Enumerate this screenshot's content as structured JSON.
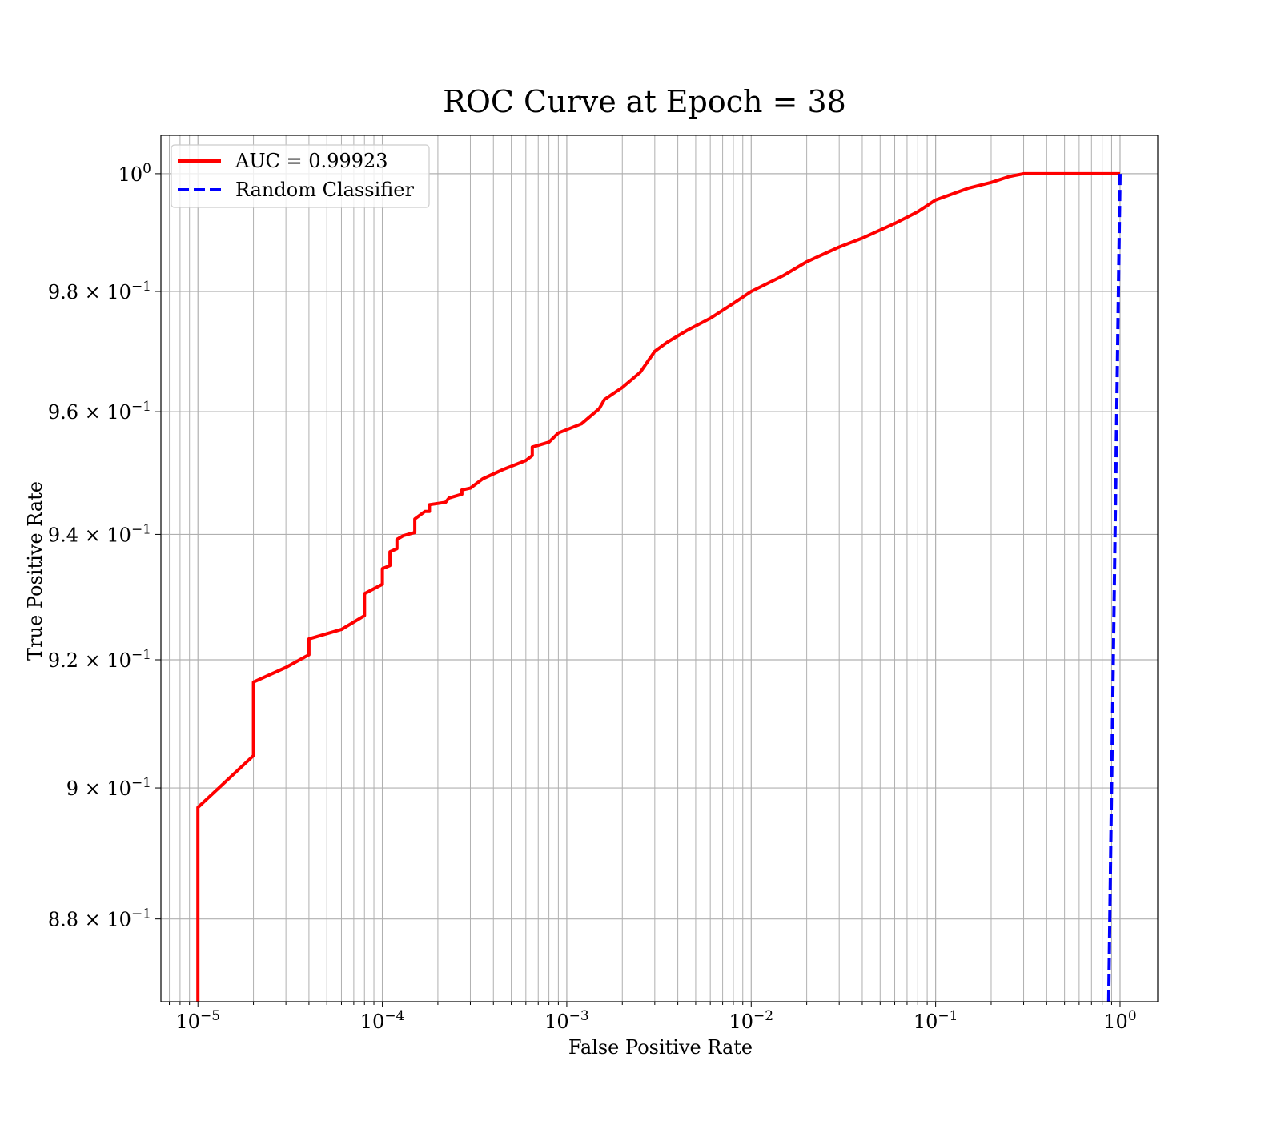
{
  "chart_data": {
    "type": "line",
    "title": "ROC Curve at Epoch = 38",
    "xlabel": "False Positive Rate",
    "ylabel": "True Positive Rate",
    "xscale": "log",
    "yscale": "log",
    "xlim": [
      6.3e-06,
      1.6
    ],
    "ylim": [
      0.8676,
      1.0066
    ],
    "grid": true,
    "legend_position": "top-left",
    "x_ticks": [
      {
        "value": 1e-05,
        "base": "10",
        "exp": "−5"
      },
      {
        "value": 0.0001,
        "base": "10",
        "exp": "−4"
      },
      {
        "value": 0.001,
        "base": "10",
        "exp": "−3"
      },
      {
        "value": 0.01,
        "base": "10",
        "exp": "−2"
      },
      {
        "value": 0.1,
        "base": "10",
        "exp": "−1"
      },
      {
        "value": 1,
        "base": "10",
        "exp": "0"
      }
    ],
    "y_ticks": [
      {
        "value": 1.0,
        "base": "10",
        "exp": "0"
      },
      {
        "value": 0.98,
        "base": "9.8 × 10",
        "exp": "−1"
      },
      {
        "value": 0.96,
        "base": "9.6 × 10",
        "exp": "−1"
      },
      {
        "value": 0.94,
        "base": "9.4 × 10",
        "exp": "−1"
      },
      {
        "value": 0.92,
        "base": "9.2 × 10",
        "exp": "−1"
      },
      {
        "value": 0.9,
        "base": "9 × 10",
        "exp": "−1"
      },
      {
        "value": 0.88,
        "base": "8.8 × 10",
        "exp": "−1"
      }
    ],
    "series": [
      {
        "name": "AUC = 0.99923",
        "color": "#ff0000",
        "style": "solid",
        "points": [
          [
            1e-05,
            0.8676
          ],
          [
            1e-05,
            0.8704
          ],
          [
            1e-05,
            0.897
          ],
          [
            2e-05,
            0.905
          ],
          [
            2e-05,
            0.9165
          ],
          [
            3e-05,
            0.9188
          ],
          [
            4e-05,
            0.9208
          ],
          [
            4e-05,
            0.9233
          ],
          [
            6e-05,
            0.9248
          ],
          [
            8e-05,
            0.927
          ],
          [
            8e-05,
            0.9305
          ],
          [
            0.0001,
            0.932
          ],
          [
            0.0001,
            0.9345
          ],
          [
            0.00011,
            0.935
          ],
          [
            0.00011,
            0.9372
          ],
          [
            0.00012,
            0.9377
          ],
          [
            0.00012,
            0.9392
          ],
          [
            0.00013,
            0.9398
          ],
          [
            0.00015,
            0.9403
          ],
          [
            0.00015,
            0.9425
          ],
          [
            0.00017,
            0.9437
          ],
          [
            0.00018,
            0.9437
          ],
          [
            0.00018,
            0.9448
          ],
          [
            0.00022,
            0.9452
          ],
          [
            0.00023,
            0.9459
          ],
          [
            0.00027,
            0.9465
          ],
          [
            0.00027,
            0.9472
          ],
          [
            0.0003,
            0.9475
          ],
          [
            0.00035,
            0.949
          ],
          [
            0.00045,
            0.9505
          ],
          [
            0.0006,
            0.952
          ],
          [
            0.00065,
            0.9528
          ],
          [
            0.00065,
            0.9542
          ],
          [
            0.0008,
            0.955
          ],
          [
            0.0009,
            0.9565
          ],
          [
            0.0012,
            0.958
          ],
          [
            0.0015,
            0.9605
          ],
          [
            0.0016,
            0.962
          ],
          [
            0.002,
            0.964
          ],
          [
            0.0025,
            0.9665
          ],
          [
            0.003,
            0.97
          ],
          [
            0.0035,
            0.9715
          ],
          [
            0.0045,
            0.9735
          ],
          [
            0.006,
            0.9755
          ],
          [
            0.008,
            0.978
          ],
          [
            0.01,
            0.98
          ],
          [
            0.015,
            0.9827
          ],
          [
            0.02,
            0.985
          ],
          [
            0.03,
            0.9875
          ],
          [
            0.04,
            0.989
          ],
          [
            0.06,
            0.9915
          ],
          [
            0.08,
            0.9935
          ],
          [
            0.1,
            0.9955
          ],
          [
            0.15,
            0.9975
          ],
          [
            0.2,
            0.9985
          ],
          [
            0.25,
            0.9995
          ],
          [
            0.3,
            1.0
          ],
          [
            1.0,
            1.0
          ]
        ]
      },
      {
        "name": "Random Classifier",
        "color": "#0000ff",
        "style": "dashed",
        "points": [
          [
            0.8676,
            0.8676
          ],
          [
            0.9,
            0.9
          ],
          [
            0.95,
            0.95
          ],
          [
            1.0,
            1.0
          ]
        ]
      }
    ]
  }
}
